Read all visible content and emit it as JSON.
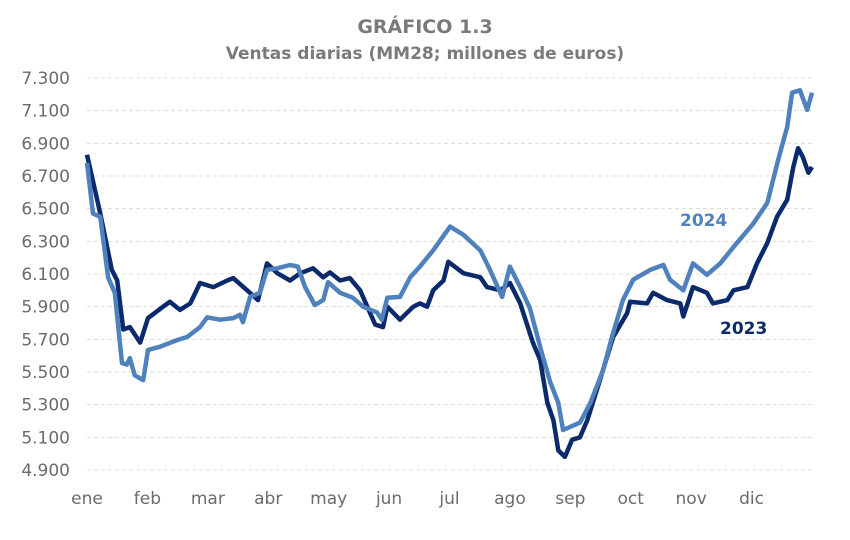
{
  "chart_data": {
    "type": "line",
    "title": "GRÁFICO 1.3",
    "subtitle": "Ventas diarias (MM28; millones de euros)",
    "xlabel": "",
    "ylabel": "",
    "x_unit": "month index (0 = start of ene, 12 = end of dic)",
    "x_ticks": [
      "ene",
      "feb",
      "mar",
      "abr",
      "may",
      "jun",
      "jul",
      "ago",
      "sep",
      "oct",
      "nov",
      "dic"
    ],
    "y_ticks": [
      "7.300",
      "7.100",
      "6.900",
      "6.700",
      "6.500",
      "6.300",
      "6.100",
      "5.900",
      "5.700",
      "5.500",
      "5.300",
      "5.100",
      "4.900"
    ],
    "ylim": [
      4900,
      7300
    ],
    "xlim": [
      0,
      12
    ],
    "grid": "horizontal dashed",
    "series": [
      {
        "name": "2023",
        "color": "#0b2a6b",
        "x": [
          0,
          0.22,
          0.41,
          0.5,
          0.6,
          0.71,
          0.88,
          1.01,
          1.26,
          1.37,
          1.54,
          1.71,
          1.87,
          2.09,
          2.32,
          2.42,
          2.65,
          2.83,
          2.98,
          3.15,
          3.36,
          3.53,
          3.74,
          3.91,
          4.02,
          4.19,
          4.35,
          4.52,
          4.64,
          4.77,
          4.9,
          4.97,
          5.18,
          5.4,
          5.51,
          5.63,
          5.73,
          5.9,
          5.98,
          6.23,
          6.51,
          6.62,
          6.84,
          7.0,
          7.17,
          7.38,
          7.5,
          7.62,
          7.72,
          7.8,
          7.91,
          8.03,
          8.16,
          8.28,
          8.49,
          8.71,
          8.94,
          8.99,
          9.27,
          9.37,
          9.6,
          9.82,
          9.87,
          10.03,
          10.26,
          10.36,
          10.6,
          10.7,
          10.93,
          11.09,
          11.26,
          11.42,
          11.59,
          11.69,
          11.77,
          11.85,
          11.94,
          12.0
        ],
        "values": [
          6830,
          6470,
          6125,
          6060,
          5760,
          5775,
          5680,
          5830,
          5900,
          5930,
          5880,
          5920,
          6045,
          6020,
          6060,
          6075,
          6000,
          5940,
          6165,
          6105,
          6060,
          6105,
          6135,
          6080,
          6110,
          6060,
          6075,
          6000,
          5900,
          5790,
          5775,
          5900,
          5820,
          5900,
          5920,
          5900,
          6000,
          6060,
          6175,
          6105,
          6080,
          6020,
          6000,
          6045,
          5920,
          5680,
          5575,
          5310,
          5205,
          5020,
          4980,
          5085,
          5100,
          5205,
          5450,
          5715,
          5860,
          5930,
          5920,
          5985,
          5940,
          5920,
          5840,
          6020,
          5985,
          5920,
          5940,
          6000,
          6020,
          6165,
          6290,
          6450,
          6555,
          6755,
          6870,
          6815,
          6720,
          6755
        ]
      },
      {
        "name": "2024",
        "color": "#4f81bd",
        "x": [
          0,
          0.1,
          0.22,
          0.35,
          0.46,
          0.58,
          0.66,
          0.71,
          0.79,
          0.93,
          1.01,
          1.21,
          1.49,
          1.66,
          1.87,
          1.99,
          2.2,
          2.42,
          2.53,
          2.58,
          2.7,
          2.86,
          2.98,
          3.15,
          3.36,
          3.49,
          3.61,
          3.77,
          3.91,
          3.99,
          4.19,
          4.4,
          4.57,
          4.8,
          4.88,
          4.97,
          5.18,
          5.35,
          5.51,
          5.73,
          6.01,
          6.23,
          6.51,
          6.67,
          6.87,
          7.0,
          7.17,
          7.33,
          7.53,
          7.67,
          7.8,
          7.88,
          8.16,
          8.33,
          8.54,
          8.69,
          8.87,
          9.04,
          9.32,
          9.54,
          9.65,
          9.87,
          10.03,
          10.26,
          10.48,
          10.7,
          11.03,
          11.26,
          11.44,
          11.59,
          11.67,
          11.8,
          11.92,
          12.0
        ],
        "values": [
          6780,
          6470,
          6450,
          6080,
          5985,
          5555,
          5545,
          5585,
          5480,
          5450,
          5635,
          5655,
          5695,
          5715,
          5775,
          5835,
          5820,
          5830,
          5850,
          5805,
          5960,
          5985,
          6125,
          6135,
          6155,
          6145,
          6020,
          5910,
          5940,
          6050,
          5985,
          5955,
          5900,
          5865,
          5820,
          5955,
          5960,
          6080,
          6145,
          6245,
          6390,
          6340,
          6245,
          6125,
          5960,
          6145,
          6020,
          5890,
          5615,
          5435,
          5310,
          5145,
          5190,
          5310,
          5510,
          5715,
          5940,
          6065,
          6125,
          6155,
          6065,
          6000,
          6165,
          6095,
          6165,
          6265,
          6410,
          6535,
          6800,
          7000,
          7210,
          7225,
          7105,
          7210
        ]
      }
    ],
    "annotations": [
      "2024",
      "2023"
    ]
  }
}
